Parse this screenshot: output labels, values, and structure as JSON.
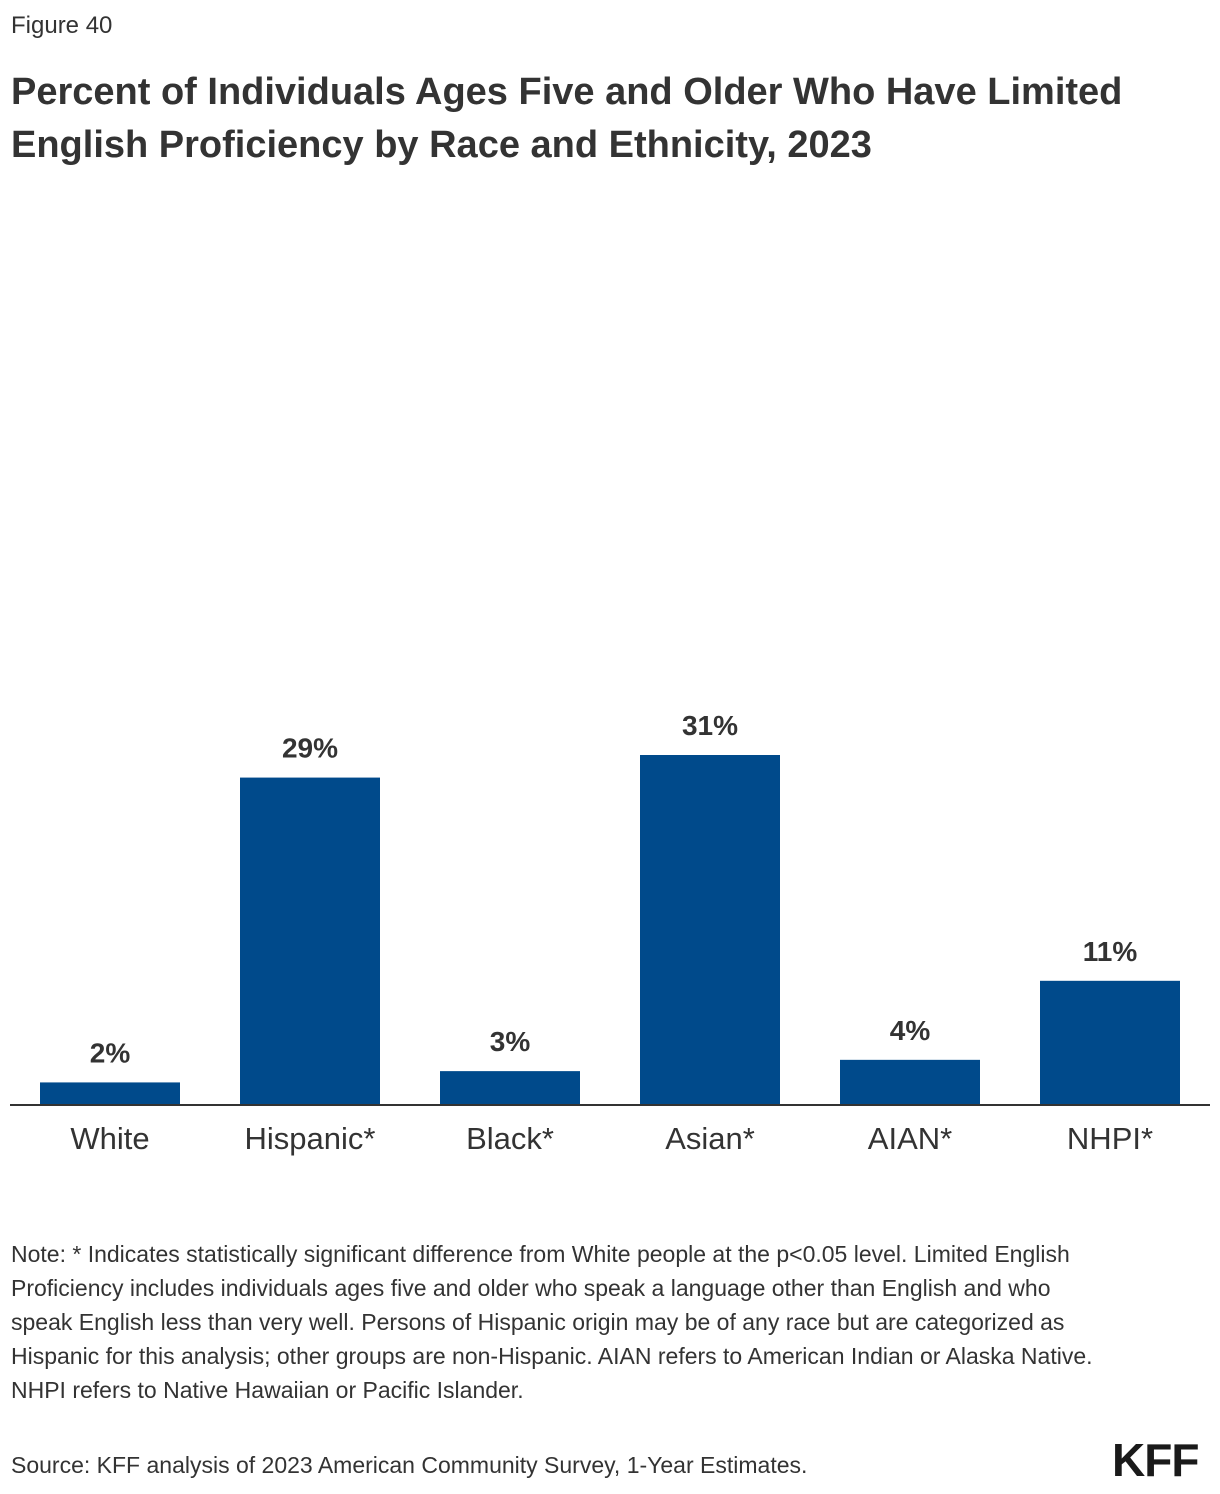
{
  "figure_label": "Figure 40",
  "logo_text": "KFF",
  "colors": {
    "bar": "#004a8b",
    "axis": "#333333",
    "text": "#333333"
  },
  "chart_data": {
    "type": "bar",
    "title": "Percent of Individuals Ages Five and Older Who Have Limited English Proficiency by Race and Ethnicity, 2023",
    "categories": [
      "White",
      "Hispanic*",
      "Black*",
      "Asian*",
      "AIAN*",
      "NHPI*"
    ],
    "values": [
      2,
      29,
      3,
      31,
      4,
      11
    ],
    "value_labels": [
      "2%",
      "29%",
      "3%",
      "31%",
      "4%",
      "11%"
    ],
    "ylim": [
      0,
      31
    ],
    "grid": false,
    "legend": "none"
  },
  "note": "Note: * Indicates statistically significant difference from White people at the p<0.05 level. Limited English Proficiency includes individuals ages five and older who speak a language other than English and who speak English less than very well. Persons of Hispanic origin may be of any race but are categorized as Hispanic for this analysis; other groups are non-Hispanic. AIAN refers to American Indian or Alaska Native. NHPI refers to Native Hawaiian or Pacific Islander.",
  "source": "Source: KFF analysis of 2023 American Community Survey, 1-Year Estimates."
}
